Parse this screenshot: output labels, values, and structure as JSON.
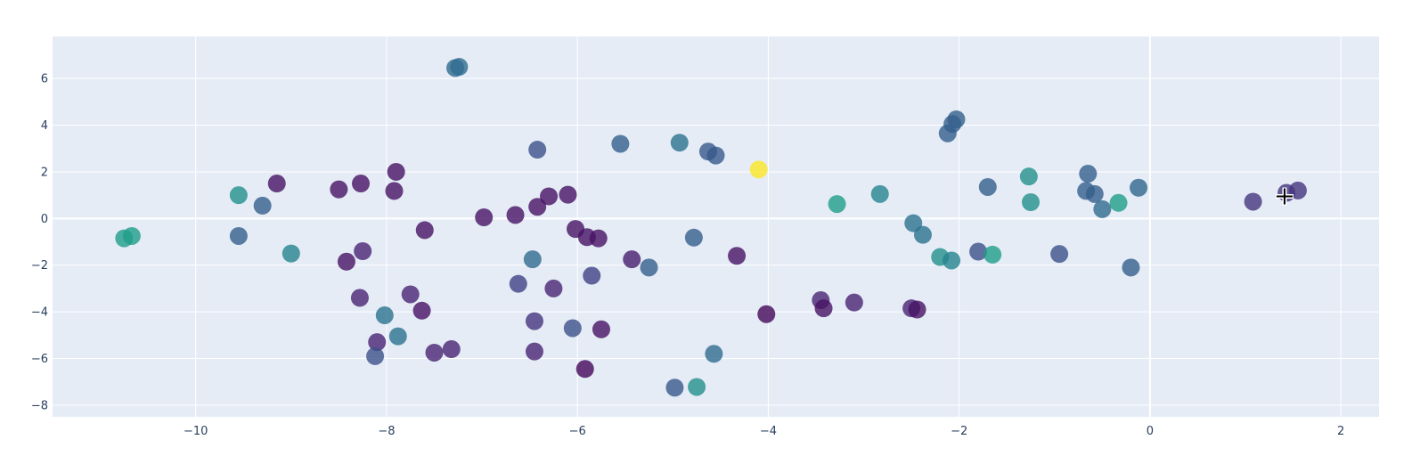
{
  "chart_data": {
    "type": "scatter",
    "title": "",
    "xlabel": "",
    "ylabel": "",
    "xlim": [
      -11.5,
      2.4
    ],
    "ylim": [
      -8.5,
      7.8
    ],
    "x_ticks": [
      -10,
      -8,
      -6,
      -4,
      -2,
      0,
      2
    ],
    "x_tick_labels": [
      "−10",
      "−8",
      "−6",
      "−4",
      "−2",
      "0",
      "2"
    ],
    "y_ticks": [
      -8,
      -6,
      -4,
      -2,
      0,
      2,
      4,
      6
    ],
    "y_tick_labels": [
      "−8",
      "−6",
      "−4",
      "−2",
      "0",
      "2",
      "4",
      "6"
    ],
    "grid": true,
    "background": "#e5ecf6",
    "colorscale": "viridis",
    "opacity": 0.8,
    "points": [
      {
        "x": -10.75,
        "y": -0.85,
        "c": 0.55
      },
      {
        "x": -10.67,
        "y": -0.75,
        "c": 0.55
      },
      {
        "x": -9.55,
        "y": 1.0,
        "c": 0.5
      },
      {
        "x": -9.3,
        "y": 0.55,
        "c": 0.3
      },
      {
        "x": -9.55,
        "y": -0.75,
        "c": 0.3
      },
      {
        "x": -9.15,
        "y": 1.5,
        "c": 0.05
      },
      {
        "x": -9.0,
        "y": -1.5,
        "c": 0.45
      },
      {
        "x": -8.5,
        "y": 1.25,
        "c": 0.05
      },
      {
        "x": -8.27,
        "y": 1.5,
        "c": 0.05
      },
      {
        "x": -8.42,
        "y": -1.85,
        "c": 0.05
      },
      {
        "x": -8.25,
        "y": -1.4,
        "c": 0.1
      },
      {
        "x": -8.28,
        "y": -3.4,
        "c": 0.1
      },
      {
        "x": -7.9,
        "y": 2.0,
        "c": 0.05
      },
      {
        "x": -7.92,
        "y": 1.18,
        "c": 0.05
      },
      {
        "x": -8.02,
        "y": -4.15,
        "c": 0.38
      },
      {
        "x": -7.88,
        "y": -5.05,
        "c": 0.38
      },
      {
        "x": -8.1,
        "y": -5.3,
        "c": 0.1
      },
      {
        "x": -8.12,
        "y": -5.9,
        "c": 0.25
      },
      {
        "x": -7.28,
        "y": 6.45,
        "c": 0.35
      },
      {
        "x": -7.24,
        "y": 6.5,
        "c": 0.35
      },
      {
        "x": -7.6,
        "y": -0.5,
        "c": 0.05
      },
      {
        "x": -7.75,
        "y": -3.25,
        "c": 0.1
      },
      {
        "x": -7.63,
        "y": -3.95,
        "c": 0.05
      },
      {
        "x": -7.5,
        "y": -5.75,
        "c": 0.1
      },
      {
        "x": -7.32,
        "y": -5.6,
        "c": 0.1
      },
      {
        "x": -6.98,
        "y": 0.05,
        "c": 0.05
      },
      {
        "x": -6.65,
        "y": 0.15,
        "c": 0.05
      },
      {
        "x": -6.62,
        "y": -2.8,
        "c": 0.2
      },
      {
        "x": -6.42,
        "y": 2.95,
        "c": 0.25
      },
      {
        "x": -6.42,
        "y": 0.5,
        "c": 0.05
      },
      {
        "x": -6.3,
        "y": 0.95,
        "c": 0.05
      },
      {
        "x": -6.1,
        "y": 1.02,
        "c": 0.05
      },
      {
        "x": -6.47,
        "y": -1.75,
        "c": 0.35
      },
      {
        "x": -6.25,
        "y": -3.0,
        "c": 0.1
      },
      {
        "x": -6.45,
        "y": -4.4,
        "c": 0.15
      },
      {
        "x": -6.45,
        "y": -5.7,
        "c": 0.1
      },
      {
        "x": -6.02,
        "y": -0.45,
        "c": 0.05
      },
      {
        "x": -5.9,
        "y": -0.8,
        "c": 0.05
      },
      {
        "x": -5.78,
        "y": -0.85,
        "c": 0.05
      },
      {
        "x": -5.85,
        "y": -2.45,
        "c": 0.2
      },
      {
        "x": -6.05,
        "y": -4.7,
        "c": 0.25
      },
      {
        "x": -5.75,
        "y": -4.75,
        "c": 0.05
      },
      {
        "x": -5.92,
        "y": -6.45,
        "c": 0.02
      },
      {
        "x": -5.55,
        "y": 3.2,
        "c": 0.3
      },
      {
        "x": -5.43,
        "y": -1.75,
        "c": 0.08
      },
      {
        "x": -5.25,
        "y": -2.1,
        "c": 0.3
      },
      {
        "x": -4.93,
        "y": 3.25,
        "c": 0.38
      },
      {
        "x": -4.63,
        "y": 2.87,
        "c": 0.28
      },
      {
        "x": -4.55,
        "y": 2.7,
        "c": 0.28
      },
      {
        "x": -4.78,
        "y": -0.82,
        "c": 0.3
      },
      {
        "x": -4.57,
        "y": -5.8,
        "c": 0.35
      },
      {
        "x": -4.98,
        "y": -7.25,
        "c": 0.28
      },
      {
        "x": -4.75,
        "y": -7.22,
        "c": 0.5
      },
      {
        "x": -4.1,
        "y": 2.1,
        "c": 1.0
      },
      {
        "x": -4.33,
        "y": -1.6,
        "c": 0.05
      },
      {
        "x": -4.02,
        "y": -4.1,
        "c": 0.02
      },
      {
        "x": -3.28,
        "y": 0.62,
        "c": 0.55
      },
      {
        "x": -3.45,
        "y": -3.5,
        "c": 0.1
      },
      {
        "x": -3.42,
        "y": -3.85,
        "c": 0.05
      },
      {
        "x": -3.1,
        "y": -3.6,
        "c": 0.1
      },
      {
        "x": -2.83,
        "y": 1.05,
        "c": 0.45
      },
      {
        "x": -2.5,
        "y": -3.85,
        "c": 0.1
      },
      {
        "x": -2.44,
        "y": -3.9,
        "c": 0.05
      },
      {
        "x": -2.48,
        "y": -0.2,
        "c": 0.38
      },
      {
        "x": -2.38,
        "y": -0.7,
        "c": 0.38
      },
      {
        "x": -2.2,
        "y": -1.65,
        "c": 0.5
      },
      {
        "x": -2.08,
        "y": -1.8,
        "c": 0.45
      },
      {
        "x": -2.12,
        "y": 3.65,
        "c": 0.3
      },
      {
        "x": -2.07,
        "y": 4.05,
        "c": 0.3
      },
      {
        "x": -2.03,
        "y": 4.25,
        "c": 0.3
      },
      {
        "x": -1.7,
        "y": 1.35,
        "c": 0.3
      },
      {
        "x": -1.8,
        "y": -1.42,
        "c": 0.25
      },
      {
        "x": -1.65,
        "y": -1.55,
        "c": 0.55
      },
      {
        "x": -1.27,
        "y": 1.8,
        "c": 0.5
      },
      {
        "x": -1.25,
        "y": 0.7,
        "c": 0.5
      },
      {
        "x": -0.95,
        "y": -1.52,
        "c": 0.25
      },
      {
        "x": -0.65,
        "y": 1.92,
        "c": 0.3
      },
      {
        "x": -0.67,
        "y": 1.18,
        "c": 0.3
      },
      {
        "x": -0.58,
        "y": 1.05,
        "c": 0.3
      },
      {
        "x": -0.5,
        "y": 0.4,
        "c": 0.35
      },
      {
        "x": -0.33,
        "y": 0.67,
        "c": 0.55
      },
      {
        "x": -0.2,
        "y": -2.1,
        "c": 0.3
      },
      {
        "x": -0.12,
        "y": 1.32,
        "c": 0.33
      },
      {
        "x": 1.08,
        "y": 0.72,
        "c": 0.15
      },
      {
        "x": 1.43,
        "y": 1.1,
        "c": 0.15
      },
      {
        "x": 1.55,
        "y": 1.2,
        "c": 0.15
      }
    ],
    "cursor": {
      "x": 1.41,
      "y": 0.95
    }
  }
}
